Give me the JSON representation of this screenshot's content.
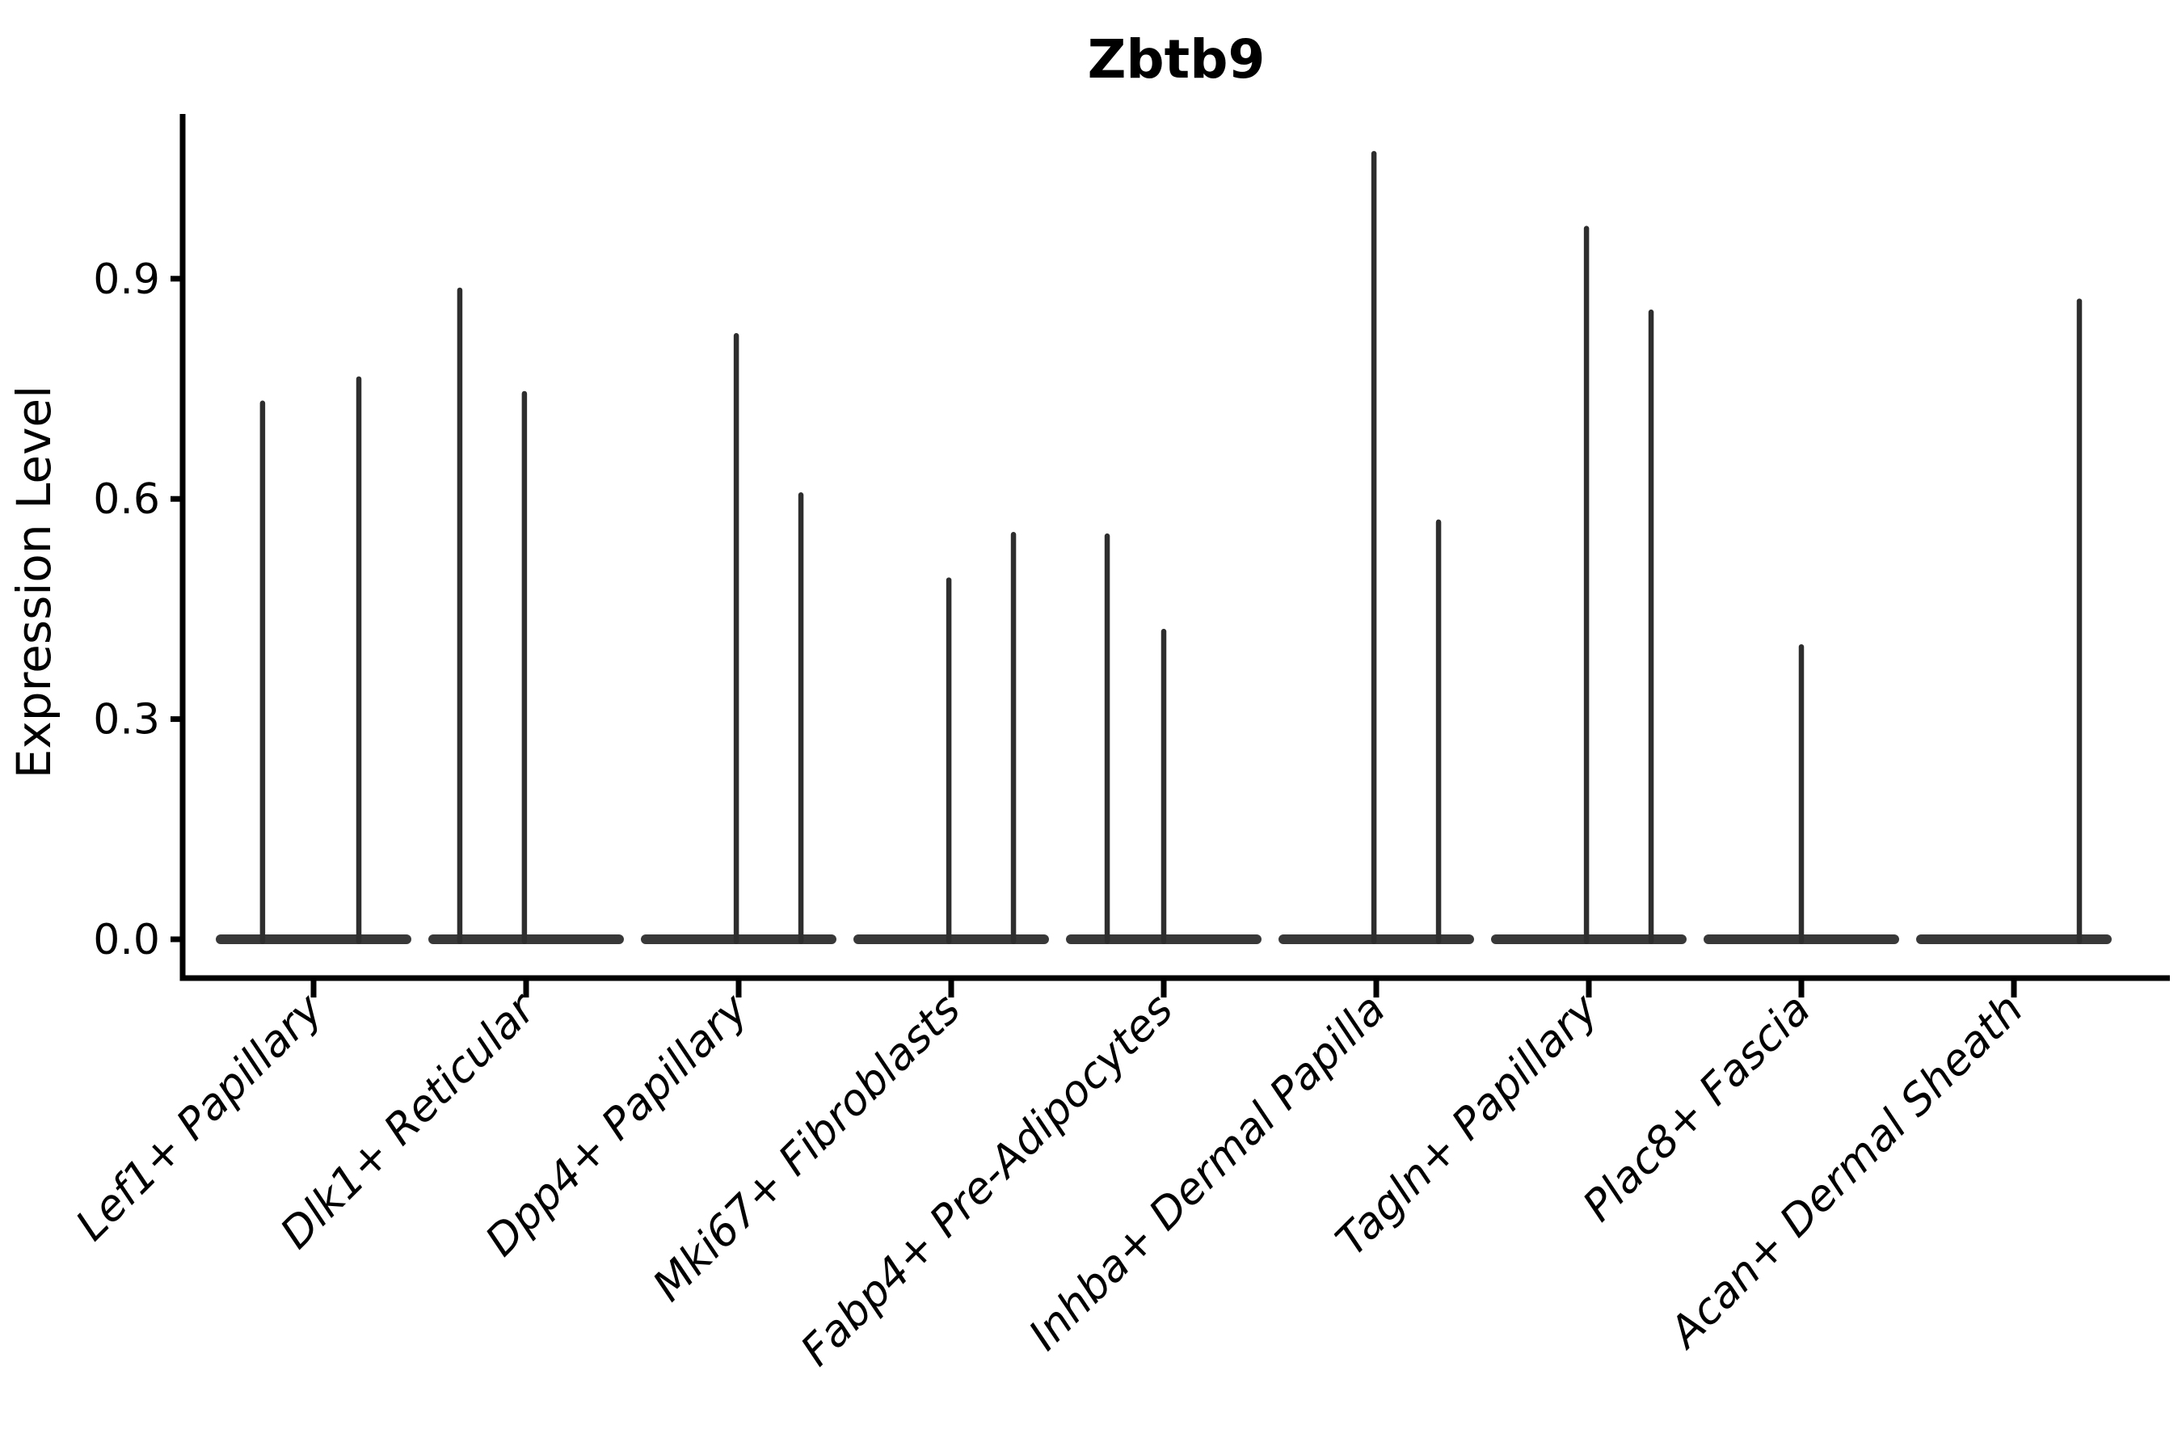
{
  "chart_data": {
    "type": "violin",
    "title": "Zbtb9",
    "xlabel": "",
    "ylabel": "Expression Level",
    "ytick_labels": [
      "0.0",
      "0.3",
      "0.6",
      "0.9"
    ],
    "ytick_values": [
      0.0,
      0.3,
      0.6,
      0.9
    ],
    "ylim": [
      -0.053,
      1.124
    ],
    "grid": false,
    "legend": false,
    "categories": [
      "Lef1+ Papillary",
      "Dlk1+ Reticular",
      "Dpp4+ Papillary",
      "Mki67+ Fibroblasts",
      "Fabp4+ Pre-Adipocytes",
      "Inhba+ Dermal Papilla",
      "Tagln+ Papillary",
      "Plac8+ Fascia",
      "Acan+ Dermal Sheath"
    ],
    "violins": [
      {
        "category": "Lef1+ Papillary",
        "base_halfwidth": 0.46,
        "spikes": [
          {
            "offset": -0.24,
            "peak": 0.734
          },
          {
            "offset": 0.213,
            "peak": 0.767
          }
        ]
      },
      {
        "category": "Dlk1+ Reticular",
        "base_halfwidth": 0.46,
        "spikes": [
          {
            "offset": -0.312,
            "peak": 0.888
          },
          {
            "offset": -0.008,
            "peak": 0.747
          }
        ]
      },
      {
        "category": "Dpp4+ Papillary",
        "base_halfwidth": 0.46,
        "spikes": [
          {
            "offset": -0.011,
            "peak": 0.826
          },
          {
            "offset": 0.293,
            "peak": 0.609
          }
        ]
      },
      {
        "category": "Mki67+ Fibroblasts",
        "base_halfwidth": 0.46,
        "spikes": [
          {
            "offset": -0.011,
            "peak": 0.493
          },
          {
            "offset": 0.293,
            "peak": 0.555
          }
        ]
      },
      {
        "category": "Fabp4+ Pre-Adipocytes",
        "base_halfwidth": 0.46,
        "spikes": [
          {
            "offset": -0.266,
            "peak": 0.553
          },
          {
            "offset": 0.0,
            "peak": 0.423
          }
        ]
      },
      {
        "category": "Inhba+ Dermal Papilla",
        "base_halfwidth": 0.46,
        "spikes": [
          {
            "offset": -0.011,
            "peak": 1.074
          },
          {
            "offset": 0.293,
            "peak": 0.572
          }
        ]
      },
      {
        "category": "Tagln+ Papillary",
        "base_halfwidth": 0.46,
        "spikes": [
          {
            "offset": -0.011,
            "peak": 0.972
          },
          {
            "offset": 0.293,
            "peak": 0.858
          }
        ]
      },
      {
        "category": "Plac8+ Fascia",
        "base_halfwidth": 0.46,
        "spikes": [
          {
            "offset": 0.0,
            "peak": 0.402
          }
        ]
      },
      {
        "category": "Acan+ Dermal Sheath",
        "base_halfwidth": 0.46,
        "spikes": [
          {
            "offset": 0.308,
            "peak": 0.873
          }
        ]
      }
    ],
    "colors": {
      "violin_base": "#383838",
      "violin_spike": "#2e2e2e",
      "axis": "#000000",
      "text": "#000000",
      "background": "#ffffff"
    }
  }
}
